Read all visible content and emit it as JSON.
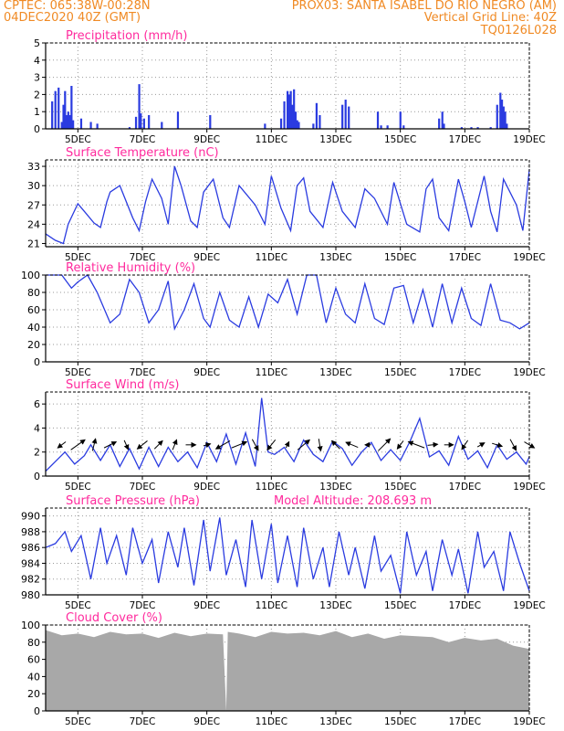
{
  "header": {
    "line1_left": "CPTEC:   065:38W-00:28N",
    "line1_right": "PROX03: SANTA ISABEL DO RIO NEGRO (AM)",
    "line2_left": "04DEC2020 40Z (GMT)",
    "line2_right": "Vertical Grid Line: 40Z",
    "line3_right": "TQ0126L028"
  },
  "colors": {
    "header": "#f08a24",
    "panel_title": "#ff2a9d",
    "series": "#2a3be0",
    "cloud_fill": "#a8a8a8",
    "wind_arrow": "#000000"
  },
  "x_axis": {
    "range_days": [
      4.0,
      19.0
    ],
    "ticks": [
      {
        "value": 5,
        "label": "5DEC"
      },
      {
        "value": 7,
        "label": "7DEC"
      },
      {
        "value": 9,
        "label": "9DEC"
      },
      {
        "value": 11,
        "label": "11DEC"
      },
      {
        "value": 13,
        "label": "13DEC"
      },
      {
        "value": 15,
        "label": "15DEC"
      },
      {
        "value": 17,
        "label": "17DEC"
      },
      {
        "value": 19,
        "label": "19DEC"
      }
    ]
  },
  "chart_data": [
    {
      "type": "bar",
      "title": "Precipitation (mm/h)",
      "ylim": [
        0,
        5
      ],
      "yticks": [
        0,
        1,
        2,
        3,
        4,
        5
      ],
      "ytick_labels": [
        "0",
        "1",
        "2",
        "3",
        "4",
        "5"
      ],
      "grid": true,
      "x": [
        4.2,
        4.3,
        4.4,
        4.5,
        4.55,
        4.6,
        4.65,
        4.7,
        4.75,
        4.8,
        4.85,
        5.1,
        5.4,
        5.6,
        6.6,
        6.8,
        6.9,
        6.95,
        7.05,
        7.2,
        7.6,
        8.1,
        9.1,
        10.8,
        11.3,
        11.4,
        11.5,
        11.55,
        11.6,
        11.65,
        11.7,
        11.75,
        11.8,
        11.85,
        12.3,
        12.4,
        12.5,
        13.2,
        13.3,
        13.4,
        14.3,
        14.4,
        14.6,
        15.0,
        15.1,
        16.2,
        16.3,
        16.35,
        16.9,
        17.2,
        17.4,
        17.8,
        18.0,
        18.1,
        18.15,
        18.2,
        18.25,
        18.3
      ],
      "values": [
        1.6,
        2.2,
        2.4,
        0.4,
        1.4,
        2.2,
        0.8,
        1.0,
        0.8,
        2.5,
        0.5,
        0.6,
        0.4,
        0.3,
        0.1,
        0.7,
        2.6,
        0.9,
        0.6,
        0.8,
        0.4,
        1.0,
        0.8,
        0.3,
        0.6,
        1.6,
        2.2,
        2.0,
        2.2,
        1.4,
        2.3,
        1.0,
        0.5,
        0.4,
        0.3,
        1.5,
        0.8,
        1.4,
        1.7,
        1.3,
        1.0,
        0.2,
        0.2,
        1.0,
        0.2,
        0.6,
        1.0,
        0.3,
        0.1,
        0.1,
        0.1,
        0.1,
        1.4,
        2.1,
        1.7,
        1.3,
        1.0,
        0.3
      ]
    },
    {
      "type": "line",
      "title": "Surface Temperature (nC)",
      "ylim": [
        20.5,
        34
      ],
      "yticks": [
        21,
        24,
        27,
        30,
        33
      ],
      "ytick_labels": [
        "21",
        "24",
        "27",
        "30",
        "33"
      ],
      "grid": true,
      "series": [
        {
          "x": [
            4.0,
            4.3,
            4.55,
            4.7,
            5.0,
            5.2,
            5.5,
            5.7,
            5.9,
            6.0,
            6.3,
            6.7,
            6.9,
            7.1,
            7.3,
            7.6,
            7.8,
            8.0,
            8.2,
            8.5,
            8.7,
            8.9,
            9.2,
            9.5,
            9.7,
            10.0,
            10.5,
            10.8,
            11.0,
            11.3,
            11.6,
            11.8,
            12.0,
            12.2,
            12.6,
            12.9,
            13.2,
            13.6,
            13.9,
            14.2,
            14.6,
            14.8,
            15.2,
            15.6,
            15.8,
            16.0,
            16.2,
            16.5,
            16.8,
            17.0,
            17.2,
            17.6,
            17.8,
            18.0,
            18.2,
            18.6,
            18.8,
            19.0
          ],
          "values": [
            22.5,
            21.5,
            21.0,
            24.0,
            27.2,
            26.0,
            24.2,
            23.5,
            27.5,
            29.0,
            30.0,
            25.0,
            23.0,
            27.5,
            31.0,
            28.0,
            24.0,
            33.0,
            30.0,
            24.5,
            23.5,
            29.0,
            31.0,
            25.0,
            23.5,
            30.0,
            27.0,
            24.0,
            31.5,
            26.5,
            23.0,
            30.0,
            31.2,
            26.0,
            23.5,
            30.5,
            26.0,
            23.5,
            29.5,
            28.0,
            24.0,
            30.5,
            24.0,
            22.8,
            29.5,
            31.0,
            25.0,
            23.0,
            31.0,
            27.5,
            23.5,
            31.5,
            26.0,
            22.8,
            31.0,
            27.0,
            23.0,
            32.5
          ]
        }
      ]
    },
    {
      "type": "line",
      "title": "Relative Humidity (%)",
      "ylim": [
        0,
        100
      ],
      "yticks": [
        0,
        20,
        40,
        60,
        80,
        100
      ],
      "ytick_labels": [
        "0",
        "20",
        "40",
        "60",
        "80",
        "100"
      ],
      "grid": true,
      "series": [
        {
          "x": [
            4.0,
            4.5,
            4.8,
            5.0,
            5.3,
            5.6,
            6.0,
            6.3,
            6.6,
            6.9,
            7.2,
            7.5,
            7.8,
            8.0,
            8.3,
            8.6,
            8.9,
            9.1,
            9.4,
            9.7,
            10.0,
            10.3,
            10.6,
            10.9,
            11.2,
            11.5,
            11.8,
            12.1,
            12.4,
            12.7,
            13.0,
            13.3,
            13.6,
            13.9,
            14.2,
            14.5,
            14.8,
            15.1,
            15.4,
            15.7,
            16.0,
            16.3,
            16.6,
            16.9,
            17.2,
            17.5,
            17.8,
            18.1,
            18.4,
            18.7,
            19.0
          ],
          "values": [
            100,
            100,
            85,
            92,
            100,
            80,
            45,
            55,
            95,
            80,
            45,
            60,
            93,
            38,
            60,
            90,
            50,
            40,
            80,
            48,
            40,
            75,
            40,
            78,
            68,
            95,
            55,
            100,
            100,
            45,
            85,
            55,
            45,
            90,
            50,
            43,
            85,
            88,
            45,
            83,
            40,
            90,
            45,
            85,
            50,
            42,
            90,
            48,
            45,
            38,
            45
          ]
        }
      ]
    },
    {
      "type": "line",
      "title": "Surface Wind (m/s)",
      "ylim": [
        0,
        7
      ],
      "yticks": [
        0,
        2,
        4,
        6
      ],
      "ytick_labels": [
        "0",
        "2",
        "4",
        "6"
      ],
      "grid": true,
      "series": [
        {
          "x": [
            4.0,
            4.3,
            4.6,
            4.9,
            5.2,
            5.4,
            5.7,
            6.0,
            6.3,
            6.6,
            6.9,
            7.2,
            7.5,
            7.8,
            8.1,
            8.4,
            8.7,
            9.0,
            9.3,
            9.6,
            9.9,
            10.2,
            10.5,
            10.7,
            10.9,
            11.1,
            11.4,
            11.7,
            12.0,
            12.3,
            12.6,
            12.9,
            13.2,
            13.5,
            13.8,
            14.1,
            14.4,
            14.7,
            15.0,
            15.3,
            15.6,
            15.9,
            16.2,
            16.5,
            16.8,
            17.1,
            17.4,
            17.7,
            18.0,
            18.3,
            18.6,
            18.9,
            19.0
          ],
          "values": [
            0.4,
            1.2,
            2.0,
            1.0,
            1.7,
            2.6,
            1.3,
            2.6,
            0.8,
            2.3,
            0.6,
            2.4,
            0.8,
            2.4,
            1.2,
            2.0,
            0.7,
            2.8,
            1.2,
            3.5,
            1.0,
            3.6,
            0.8,
            6.5,
            2.0,
            1.8,
            2.4,
            1.2,
            3.0,
            1.8,
            1.2,
            2.9,
            2.3,
            0.9,
            2.0,
            2.8,
            1.3,
            2.2,
            1.3,
            2.9,
            4.8,
            1.6,
            2.1,
            0.9,
            3.3,
            1.4,
            2.1,
            0.7,
            2.6,
            1.4,
            2.0,
            1.0,
            1.6
          ]
        }
      ]
    },
    {
      "type": "line",
      "title": "Surface Pressure (hPa)",
      "subtitle": "Model Altitude: 208.693 m",
      "ylim": [
        980,
        991
      ],
      "yticks": [
        980,
        982,
        984,
        986,
        988,
        990
      ],
      "ytick_labels": [
        "980",
        "982",
        "984",
        "986",
        "988",
        "990"
      ],
      "grid": true,
      "series": [
        {
          "x": [
            4.0,
            4.3,
            4.6,
            4.8,
            5.1,
            5.4,
            5.7,
            5.9,
            6.2,
            6.5,
            6.7,
            7.0,
            7.3,
            7.5,
            7.8,
            8.1,
            8.3,
            8.6,
            8.9,
            9.1,
            9.4,
            9.6,
            9.9,
            10.2,
            10.4,
            10.7,
            11.0,
            11.2,
            11.5,
            11.8,
            12.0,
            12.3,
            12.6,
            12.8,
            13.1,
            13.4,
            13.6,
            13.9,
            14.2,
            14.4,
            14.7,
            15.0,
            15.2,
            15.5,
            15.8,
            16.0,
            16.3,
            16.6,
            16.8,
            17.1,
            17.4,
            17.6,
            17.9,
            18.2,
            18.4,
            18.7,
            19.0
          ],
          "values": [
            986.0,
            986.5,
            988.0,
            985.5,
            987.5,
            982.0,
            988.5,
            984.0,
            987.5,
            982.5,
            988.5,
            984.0,
            987.0,
            981.5,
            988.0,
            983.5,
            988.5,
            981.2,
            989.5,
            983.0,
            989.8,
            982.5,
            987.0,
            981.0,
            989.5,
            982.0,
            989.0,
            981.5,
            987.5,
            981.0,
            988.5,
            982.0,
            986.0,
            981.0,
            988.0,
            982.5,
            986.0,
            980.8,
            987.5,
            983.0,
            985.0,
            980.2,
            988.0,
            982.5,
            985.5,
            980.5,
            987.0,
            982.5,
            985.8,
            980.2,
            988.0,
            983.5,
            985.5,
            980.5,
            988.0,
            984.0,
            980.5
          ]
        }
      ]
    },
    {
      "type": "area",
      "title": "Cloud Cover (%)",
      "ylim": [
        0,
        100
      ],
      "yticks": [
        0,
        20,
        40,
        60,
        80,
        100
      ],
      "ytick_labels": [
        "0",
        "20",
        "40",
        "60",
        "80",
        "100"
      ],
      "grid": true,
      "series": [
        {
          "x": [
            4.0,
            4.5,
            5.0,
            5.5,
            6.0,
            6.5,
            7.0,
            7.5,
            8.0,
            8.5,
            9.0,
            9.5,
            9.6,
            9.65,
            10.0,
            10.5,
            11.0,
            11.5,
            12.0,
            12.5,
            13.0,
            13.5,
            14.0,
            14.5,
            15.0,
            15.5,
            16.0,
            16.5,
            17.0,
            17.5,
            18.0,
            18.5,
            19.0
          ],
          "values": [
            94,
            88,
            90,
            86,
            92,
            89,
            90,
            85,
            91,
            87,
            90,
            89,
            0,
            92,
            90,
            86,
            92,
            90,
            91,
            88,
            93,
            86,
            90,
            84,
            88,
            87,
            86,
            80,
            85,
            82,
            84,
            76,
            72
          ]
        }
      ]
    }
  ],
  "wind_vectors": {
    "x": [
      4.5,
      5.0,
      5.5,
      6.0,
      6.5,
      7.0,
      7.5,
      8.0,
      8.5,
      9.0,
      9.5,
      10.0,
      10.5,
      11.0,
      11.5,
      12.0,
      12.5,
      13.0,
      13.5,
      14.0,
      14.5,
      15.0,
      15.5,
      16.0,
      16.5,
      17.0,
      17.5,
      18.0,
      18.5,
      19.0
    ],
    "u": [
      -0.8,
      1.4,
      0.3,
      1.2,
      0.4,
      -1.0,
      0.8,
      0.4,
      1.0,
      0.7,
      -1.4,
      1.5,
      0.6,
      -0.8,
      0.3,
      1.2,
      0.2,
      -0.8,
      -1.2,
      -0.6,
      1.2,
      -0.6,
      -1.6,
      1.0,
      0.9,
      -0.6,
      0.7,
      1.0,
      0.6,
      1.0
    ],
    "v": [
      -0.6,
      1.0,
      1.2,
      0.6,
      -0.9,
      -0.8,
      0.8,
      1.0,
      0.0,
      0.2,
      -0.8,
      0.6,
      -1.1,
      -1.0,
      0.6,
      1.0,
      -1.2,
      0.8,
      0.5,
      0.0,
      1.2,
      -0.8,
      0.6,
      0.1,
      0.0,
      -0.9,
      0.4,
      -0.3,
      -1.1,
      -0.6
    ]
  }
}
